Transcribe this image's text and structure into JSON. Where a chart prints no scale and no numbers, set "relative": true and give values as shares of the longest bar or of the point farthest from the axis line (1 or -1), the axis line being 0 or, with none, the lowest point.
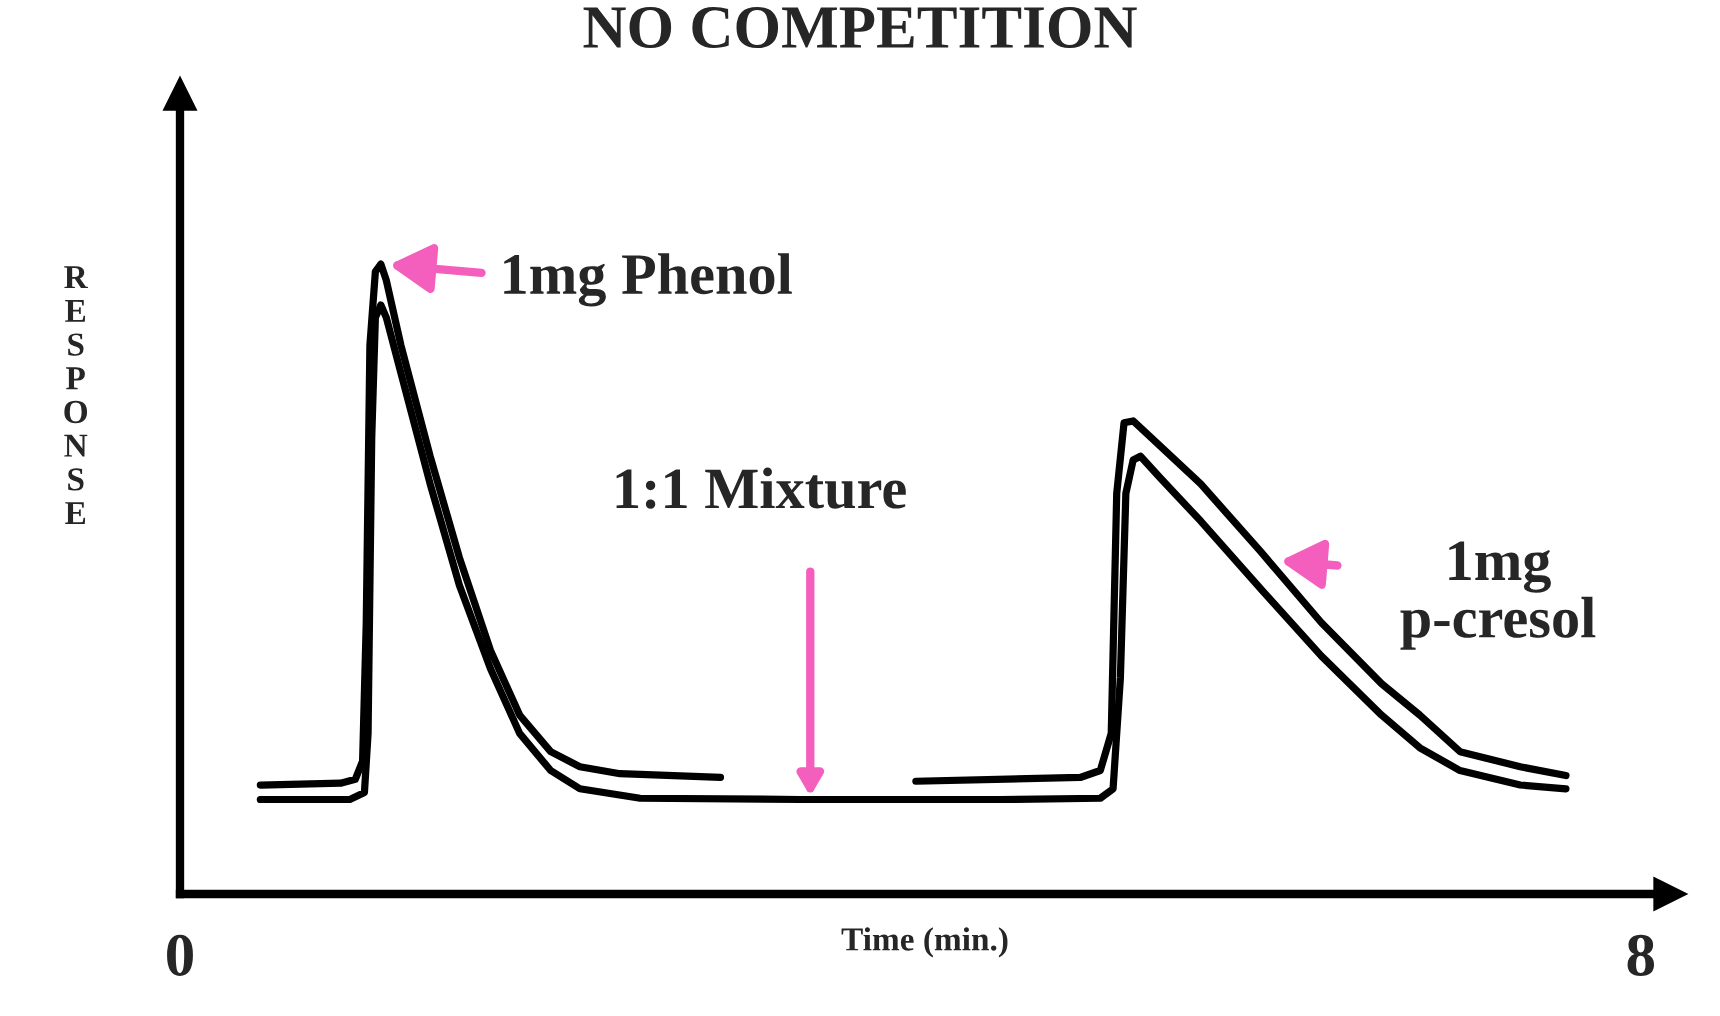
{
  "chart_data": {
    "type": "line",
    "title": "NO COMPETITION",
    "xlabel": "Time (min.)",
    "ylabel": "RESPONSE",
    "relative": true,
    "xlim": [
      0,
      8.16
    ],
    "xticks": [
      0,
      8
    ],
    "series": [
      {
        "color": "#000000",
        "x": [
          0.44,
          0.88,
          0.96,
          1.0,
          1.02,
          1.04,
          1.07,
          1.1,
          1.13,
          1.21,
          1.37,
          1.53,
          1.7,
          1.86,
          2.03,
          2.19,
          2.41,
          2.96,
          3.5,
          4.03,
          4.93,
          5.04,
          5.1,
          5.13,
          5.17,
          5.22,
          5.32,
          5.59,
          5.92,
          6.25,
          6.58,
          6.79,
          7.01,
          7.34,
          7.59
        ],
        "values": [
          0.173,
          0.176,
          0.182,
          0.211,
          0.431,
          0.871,
          0.988,
          1.0,
          0.974,
          0.871,
          0.695,
          0.534,
          0.387,
          0.284,
          0.226,
          0.202,
          0.191,
          0.185,
          null,
          0.179,
          0.185,
          0.196,
          0.255,
          0.636,
          0.748,
          0.751,
          0.724,
          0.651,
          0.543,
          0.431,
          0.334,
          0.284,
          0.226,
          0.202,
          0.188
        ]
      },
      {
        "color": "#000000",
        "x": [
          0.44,
          0.93,
          1.01,
          1.03,
          1.05,
          1.07,
          1.1,
          1.13,
          1.21,
          1.37,
          1.53,
          1.7,
          1.86,
          2.03,
          2.19,
          2.52,
          3.4,
          4.49,
          5.04,
          5.11,
          5.15,
          5.18,
          5.22,
          5.26,
          5.37,
          5.59,
          5.92,
          6.25,
          6.58,
          6.79,
          7.01,
          7.34,
          7.59
        ],
        "values": [
          0.15,
          0.15,
          0.161,
          0.255,
          0.724,
          0.915,
          0.935,
          0.915,
          0.827,
          0.651,
          0.49,
          0.358,
          0.255,
          0.196,
          0.167,
          0.152,
          0.15,
          0.15,
          0.152,
          0.167,
          0.343,
          0.636,
          0.689,
          0.695,
          0.66,
          0.592,
          0.484,
          0.378,
          0.284,
          0.232,
          0.196,
          0.173,
          0.167
        ]
      }
    ],
    "annotations": [
      {
        "text": "1mg Phenol",
        "x": 1.1,
        "y": 1.0
      },
      "1:1 Mixture",
      {
        "text": "1mg\np-cresol",
        "x": 5.98,
        "y": 0.53
      }
    ]
  }
}
